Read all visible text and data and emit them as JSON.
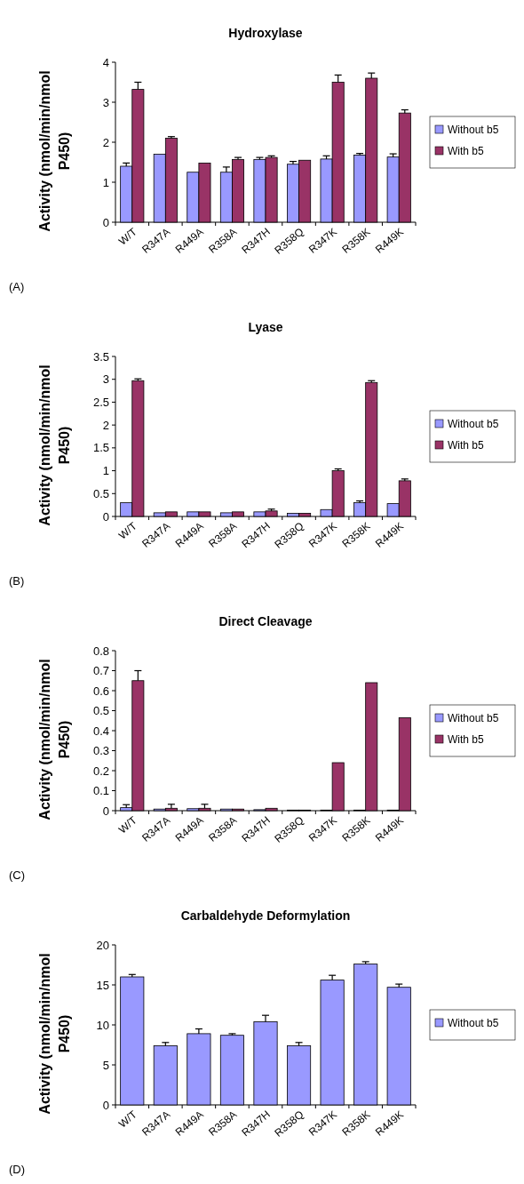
{
  "chart_data": [
    {
      "type": "bar",
      "title": "Hydroxylase",
      "ylabel": "Activity (nmol/min/nmol P450)",
      "annotations": [
        "(A)"
      ],
      "categories": [
        "W/T",
        "R347A",
        "R449A",
        "R358A",
        "R347H",
        "R358Q",
        "R347K",
        "R358K",
        "R449K"
      ],
      "ylim": [
        0,
        4
      ],
      "yticks": [
        0,
        1,
        2,
        3,
        4
      ],
      "legend": "right",
      "series": [
        {
          "name": "Without b5",
          "color": "#9999ff",
          "values": [
            1.4,
            1.7,
            1.25,
            1.25,
            1.57,
            1.45,
            1.58,
            1.68,
            1.63
          ],
          "errors": [
            [
              1.4,
              1.48
            ],
            null,
            null,
            [
              1.25,
              1.38
            ],
            [
              1.57,
              1.62
            ],
            [
              1.45,
              1.52
            ],
            [
              1.58,
              1.66
            ],
            [
              1.68,
              1.72
            ],
            [
              1.63,
              1.71
            ]
          ]
        },
        {
          "name": "With b5",
          "color": "#993366",
          "values": [
            3.32,
            2.1,
            1.48,
            1.57,
            1.62,
            1.55,
            3.5,
            3.6,
            2.73
          ],
          "errors": [
            [
              3.32,
              3.5
            ],
            [
              2.1,
              2.14
            ],
            null,
            [
              1.57,
              1.62
            ],
            [
              1.62,
              1.66
            ],
            null,
            [
              3.5,
              3.68
            ],
            [
              3.6,
              3.73
            ],
            [
              2.73,
              2.81
            ]
          ]
        }
      ]
    },
    {
      "type": "bar",
      "title": "Lyase",
      "ylabel": "Activity (nmol/min/nmol P450)",
      "annotations": [
        "(B)"
      ],
      "categories": [
        "W/T",
        "R347A",
        "R449A",
        "R358A",
        "R347H",
        "R358Q",
        "R347K",
        "R358K",
        "R449K"
      ],
      "ylim": [
        0,
        3.5
      ],
      "yticks": [
        0,
        0.5,
        1,
        1.5,
        2,
        2.5,
        3,
        3.5
      ],
      "legend": "right",
      "series": [
        {
          "name": "Without b5",
          "color": "#9999ff",
          "values": [
            0.3,
            0.08,
            0.1,
            0.08,
            0.1,
            0.07,
            0.15,
            0.3,
            0.28
          ],
          "errors": [
            null,
            null,
            null,
            null,
            null,
            null,
            null,
            [
              0.3,
              0.34
            ],
            null
          ]
        },
        {
          "name": "With b5",
          "color": "#993366",
          "values": [
            2.97,
            0.1,
            0.1,
            0.1,
            0.12,
            0.07,
            1.0,
            2.93,
            0.78
          ],
          "errors": [
            [
              2.97,
              3.01
            ],
            null,
            null,
            null,
            [
              0.12,
              0.16
            ],
            null,
            [
              1.0,
              1.04
            ],
            [
              2.93,
              2.97
            ],
            [
              0.78,
              0.82
            ]
          ]
        }
      ]
    },
    {
      "type": "bar",
      "title": "Direct Cleavage",
      "ylabel": "Activity (nmol/min/nmol P450)",
      "annotations": [
        "(C)"
      ],
      "categories": [
        "W/T",
        "R347A",
        "R449A",
        "R358A",
        "R347H",
        "R358Q",
        "R347K",
        "R358K",
        "R449K"
      ],
      "ylim": [
        0,
        0.8
      ],
      "yticks": [
        0,
        0.1,
        0.2,
        0.3,
        0.4,
        0.5,
        0.6,
        0.7,
        0.8
      ],
      "legend": "right",
      "series": [
        {
          "name": "Without b5",
          "color": "#9999ff",
          "values": [
            0.015,
            0.008,
            0.01,
            0.008,
            0.005,
            0.003,
            0.003,
            0.003,
            0.003
          ],
          "errors": [
            [
              0.015,
              0.03
            ],
            null,
            null,
            null,
            null,
            null,
            null,
            null,
            null
          ]
        },
        {
          "name": "With b5",
          "color": "#993366",
          "values": [
            0.65,
            0.012,
            0.012,
            0.008,
            0.012,
            0.003,
            0.24,
            0.64,
            0.465
          ],
          "errors": [
            [
              0.65,
              0.7
            ],
            [
              0.012,
              0.032
            ],
            [
              0.012,
              0.032
            ],
            null,
            null,
            null,
            null,
            null,
            null
          ]
        }
      ]
    },
    {
      "type": "bar",
      "title": "Carbaldehyde Deformylation",
      "ylabel": "Activity (nmol/min/nmol P450)",
      "annotations": [
        "(D)"
      ],
      "categories": [
        "W/T",
        "R347A",
        "R449A",
        "R358A",
        "R347H",
        "R358Q",
        "R347K",
        "R358K",
        "R449K"
      ],
      "ylim": [
        0,
        20
      ],
      "yticks": [
        0,
        5,
        10,
        15,
        20
      ],
      "legend": "right",
      "series": [
        {
          "name": "Without b5",
          "color": "#9999ff",
          "values": [
            16.0,
            7.4,
            8.9,
            8.7,
            10.4,
            7.4,
            15.6,
            17.6,
            14.7
          ],
          "errors": [
            [
              16.0,
              16.3
            ],
            [
              7.4,
              7.8
            ],
            [
              8.9,
              9.5
            ],
            [
              8.7,
              8.9
            ],
            [
              10.4,
              11.2
            ],
            [
              7.4,
              7.8
            ],
            [
              15.6,
              16.2
            ],
            [
              17.6,
              17.9
            ],
            [
              14.7,
              15.1
            ]
          ]
        }
      ]
    }
  ]
}
